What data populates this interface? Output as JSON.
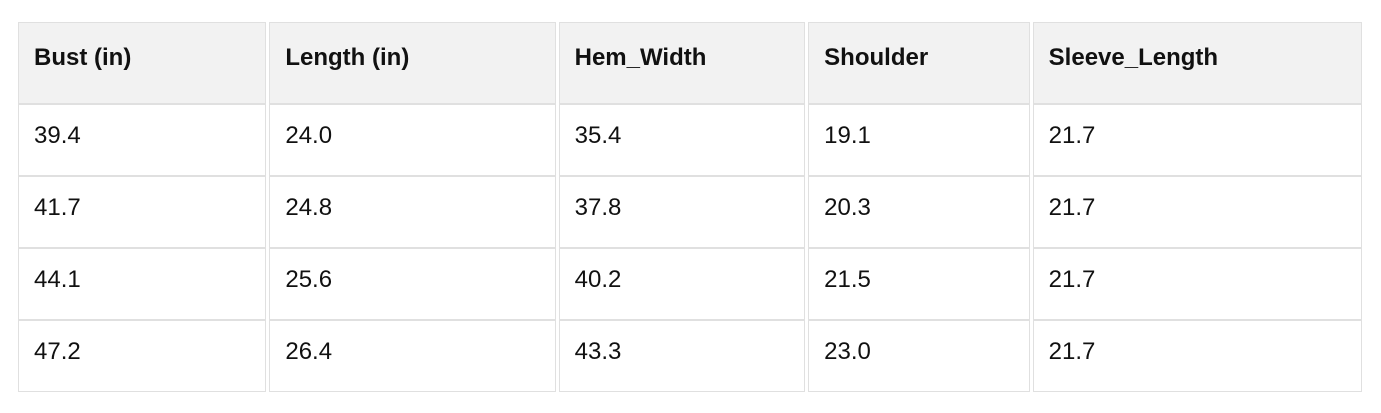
{
  "chart_data": {
    "type": "table",
    "title": "",
    "columns": [
      "Bust (in)",
      "Length (in)",
      "Hem_Width",
      "Shoulder",
      "Sleeve_Length"
    ],
    "rows": [
      [
        "39.4",
        "24.0",
        "35.4",
        "19.1",
        "21.7"
      ],
      [
        "41.7",
        "24.8",
        "37.8",
        "20.3",
        "21.7"
      ],
      [
        "44.1",
        "25.6",
        "40.2",
        "21.5",
        "21.7"
      ],
      [
        "47.2",
        "26.4",
        "43.3",
        "23.0",
        "21.7"
      ]
    ]
  },
  "style": {
    "header_bg": "#f2f2f2",
    "border_color": "#e0e0e0",
    "text_color": "#111111",
    "page_bg": "#ffffff"
  }
}
